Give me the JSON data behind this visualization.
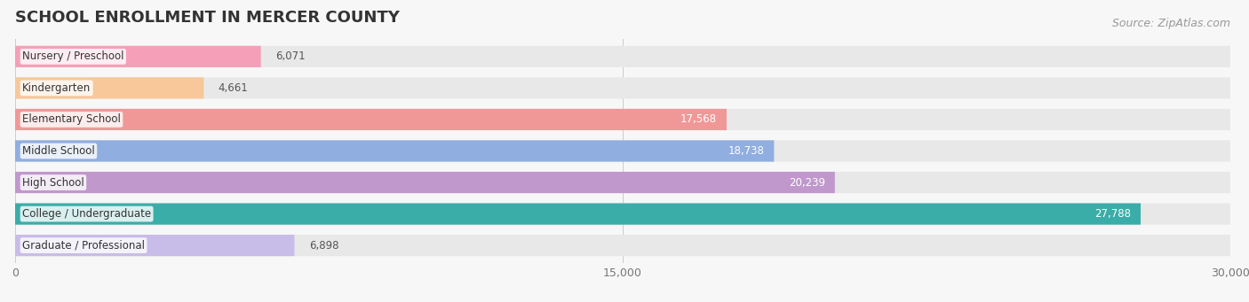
{
  "title": "SCHOOL ENROLLMENT IN MERCER COUNTY",
  "source": "Source: ZipAtlas.com",
  "categories": [
    "Nursery / Preschool",
    "Kindergarten",
    "Elementary School",
    "Middle School",
    "High School",
    "College / Undergraduate",
    "Graduate / Professional"
  ],
  "values": [
    6071,
    4661,
    17568,
    18738,
    20239,
    27788,
    6898
  ],
  "bar_colors": [
    "#f5a0b8",
    "#f8c89a",
    "#f09898",
    "#90aee0",
    "#c098cc",
    "#3aada8",
    "#c8bce8"
  ],
  "xlim": [
    0,
    30000
  ],
  "xticks": [
    0,
    15000,
    30000
  ],
  "xtick_labels": [
    "0",
    "15,000",
    "30,000"
  ],
  "background_color": "#f7f7f7",
  "bar_bg_color": "#e8e8e8",
  "title_fontsize": 13,
  "label_fontsize": 8.5,
  "value_fontsize": 8.5,
  "source_fontsize": 9,
  "value_inside_threshold": 12000
}
